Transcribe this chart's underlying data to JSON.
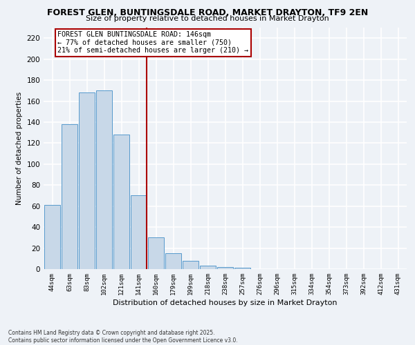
{
  "title_line1": "FOREST GLEN, BUNTINGSDALE ROAD, MARKET DRAYTON, TF9 2EN",
  "title_line2": "Size of property relative to detached houses in Market Drayton",
  "xlabel": "Distribution of detached houses by size in Market Drayton",
  "ylabel": "Number of detached properties",
  "footer_line1": "Contains HM Land Registry data © Crown copyright and database right 2025.",
  "footer_line2": "Contains public sector information licensed under the Open Government Licence v3.0.",
  "categories": [
    "44sqm",
    "63sqm",
    "83sqm",
    "102sqm",
    "121sqm",
    "141sqm",
    "160sqm",
    "179sqm",
    "199sqm",
    "218sqm",
    "238sqm",
    "257sqm",
    "276sqm",
    "296sqm",
    "315sqm",
    "334sqm",
    "354sqm",
    "373sqm",
    "392sqm",
    "412sqm",
    "431sqm"
  ],
  "values": [
    61,
    138,
    168,
    170,
    128,
    70,
    30,
    15,
    8,
    3,
    2,
    1,
    0,
    0,
    0,
    0,
    0,
    0,
    0,
    0,
    0
  ],
  "bar_color": "#c8d8e8",
  "bar_edge_color": "#5599cc",
  "highlight_index": 5,
  "highlight_line_color": "#aa0000",
  "annotation_box_text": "FOREST GLEN BUNTINGSDALE ROAD: 146sqm\n← 77% of detached houses are smaller (750)\n21% of semi-detached houses are larger (210) →",
  "ylim": [
    0,
    230
  ],
  "yticks": [
    0,
    20,
    40,
    60,
    80,
    100,
    120,
    140,
    160,
    180,
    200,
    220
  ],
  "background_color": "#eef2f7",
  "grid_color": "#ffffff"
}
